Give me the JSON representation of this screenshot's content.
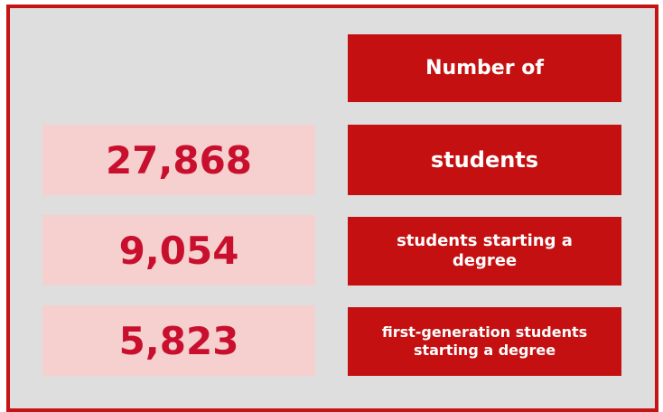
{
  "header": {
    "title": "Number of"
  },
  "rows": [
    {
      "value": "27,868",
      "label": "students"
    },
    {
      "value": "9,054",
      "label": "students starting a degree"
    },
    {
      "value": "5,823",
      "label": "first-generation students starting a degree"
    }
  ]
}
